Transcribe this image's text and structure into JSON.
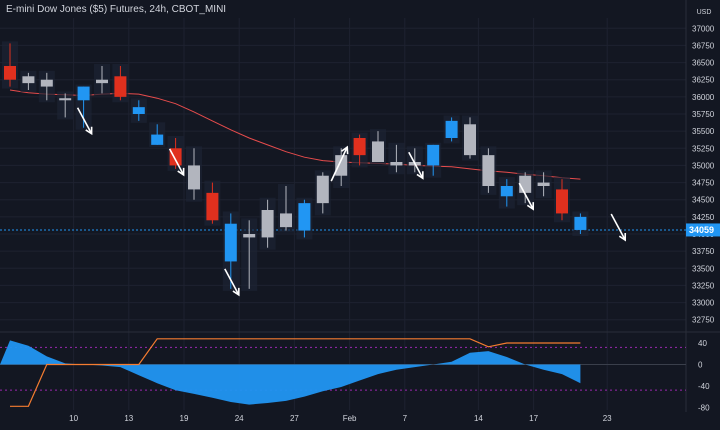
{
  "header": {
    "title": "E-mini Dow Jones ($5) Futures, 24h, CBOT_MINI",
    "currency": "USD"
  },
  "price_tag": "34059",
  "colors": {
    "background": "#131722",
    "up_candle": "#2196f3",
    "down_candle": "#e0301e",
    "neutral_candle": "#b2b5be",
    "moving_average": "#e74c4c",
    "price_line": "#2196f3",
    "arrow": "#ffffff",
    "oscillator_positive": "#2196f3",
    "oscillator_negative": "#2196f3",
    "oscillator_signal": "#f57c30",
    "grid": "#1e2230",
    "axis_text": "#d1d4dc"
  },
  "chart_data": [
    {
      "type": "candlestick",
      "title": "",
      "y_axis_ticks": [
        37000,
        36750,
        36500,
        36250,
        36000,
        35750,
        35500,
        35250,
        35000,
        34750,
        34500,
        34250,
        34000,
        33750,
        33500,
        33250,
        33000,
        32750
      ],
      "x_axis_ticks": [
        "10",
        "13",
        "19",
        "24",
        "27",
        "Feb",
        "7",
        "14",
        "17",
        "23"
      ],
      "ylim": [
        32600,
        37150
      ],
      "last_price": 34059,
      "candles": [
        {
          "date": "Jan 4",
          "open": 36450,
          "high": 36780,
          "low": 36150,
          "close": 36250,
          "color": "down"
        },
        {
          "date": "Jan 5",
          "open": 36200,
          "high": 36350,
          "low": 36100,
          "close": 36300,
          "color": "neutral"
        },
        {
          "date": "Jan 6",
          "open": 36250,
          "high": 36350,
          "low": 35950,
          "close": 36150,
          "color": "neutral"
        },
        {
          "date": "Jan 7",
          "open": 35950,
          "high": 36050,
          "low": 35700,
          "close": 35980,
          "color": "neutral"
        },
        {
          "date": "Jan 10",
          "open": 35950,
          "high": 36150,
          "low": 35550,
          "close": 36150,
          "color": "up"
        },
        {
          "date": "Jan 11",
          "open": 36200,
          "high": 36450,
          "low": 36050,
          "close": 36250,
          "color": "neutral"
        },
        {
          "date": "Jan 12",
          "open": 36300,
          "high": 36450,
          "low": 35950,
          "close": 36000,
          "color": "down"
        },
        {
          "date": "Jan 13",
          "open": 35850,
          "high": 35950,
          "low": 35650,
          "close": 35750,
          "color": "up"
        },
        {
          "date": "Jan 14",
          "open": 35450,
          "high": 35600,
          "low": 35300,
          "close": 35300,
          "color": "up"
        },
        {
          "date": "Jan 18",
          "open": 35250,
          "high": 35400,
          "low": 34950,
          "close": 35000,
          "color": "down"
        },
        {
          "date": "Jan 19",
          "open": 35000,
          "high": 35250,
          "low": 34500,
          "close": 34650,
          "color": "neutral"
        },
        {
          "date": "Jan 20",
          "open": 34600,
          "high": 34750,
          "low": 34150,
          "close": 34200,
          "color": "down"
        },
        {
          "date": "Jan 21",
          "open": 34150,
          "high": 34300,
          "low": 33200,
          "close": 33600,
          "color": "up"
        },
        {
          "date": "Jan 24",
          "open": 33950,
          "high": 34200,
          "low": 33200,
          "close": 34000,
          "color": "neutral"
        },
        {
          "date": "Jan 25",
          "open": 33950,
          "high": 34500,
          "low": 33800,
          "close": 34350,
          "color": "neutral"
        },
        {
          "date": "Jan 26",
          "open": 34300,
          "high": 34700,
          "low": 34050,
          "close": 34100,
          "color": "neutral"
        },
        {
          "date": "Jan 27",
          "open": 34050,
          "high": 34500,
          "low": 33950,
          "close": 34450,
          "color": "up"
        },
        {
          "date": "Jan 28",
          "open": 34450,
          "high": 34900,
          "low": 34300,
          "close": 34850,
          "color": "neutral"
        },
        {
          "date": "Jan 31",
          "open": 34850,
          "high": 35250,
          "low": 34700,
          "close": 35150,
          "color": "neutral"
        },
        {
          "date": "Feb 1",
          "open": 35150,
          "high": 35450,
          "low": 35000,
          "close": 35400,
          "color": "down"
        },
        {
          "date": "Feb 2",
          "open": 35350,
          "high": 35500,
          "low": 35050,
          "close": 35050,
          "color": "neutral"
        },
        {
          "date": "Feb 3",
          "open": 35000,
          "high": 35300,
          "low": 34900,
          "close": 35050,
          "color": "neutral"
        },
        {
          "date": "Feb 4",
          "open": 35050,
          "high": 35250,
          "low": 34900,
          "close": 35000,
          "color": "neutral"
        },
        {
          "date": "Feb 7",
          "open": 35000,
          "high": 35300,
          "low": 34850,
          "close": 35300,
          "color": "up"
        },
        {
          "date": "Feb 8",
          "open": 35400,
          "high": 35700,
          "low": 35350,
          "close": 35650,
          "color": "up"
        },
        {
          "date": "Feb 9",
          "open": 35600,
          "high": 35700,
          "low": 35100,
          "close": 35150,
          "color": "neutral"
        },
        {
          "date": "Feb 10",
          "open": 35150,
          "high": 35250,
          "low": 34600,
          "close": 34700,
          "color": "neutral"
        },
        {
          "date": "Feb 11",
          "open": 34700,
          "high": 34800,
          "low": 34400,
          "close": 34550,
          "color": "up"
        },
        {
          "date": "Feb 14",
          "open": 34600,
          "high": 34900,
          "low": 34450,
          "close": 34850,
          "color": "neutral"
        },
        {
          "date": "Feb 15",
          "open": 34750,
          "high": 34900,
          "low": 34550,
          "close": 34700,
          "color": "neutral"
        },
        {
          "date": "Feb 16",
          "open": 34650,
          "high": 34800,
          "low": 34200,
          "close": 34300,
          "color": "down"
        },
        {
          "date": "Feb 17",
          "open": 34250,
          "high": 34300,
          "low": 34000,
          "close": 34059,
          "color": "up"
        }
      ],
      "moving_average": [
        36100,
        36060,
        36040,
        36030,
        36020,
        36040,
        36050,
        36040,
        35980,
        35900,
        35780,
        35650,
        35520,
        35400,
        35300,
        35200,
        35120,
        35070,
        35050,
        35040,
        35030,
        35020,
        35000,
        34990,
        34980,
        34950,
        34920,
        34900,
        34870,
        34850,
        34820,
        34800
      ],
      "signal_arrows": [
        {
          "date": "Jan 10",
          "direction": "down"
        },
        {
          "date": "Jan 18",
          "direction": "down"
        },
        {
          "date": "Jan 21",
          "direction": "down"
        },
        {
          "date": "Jan 31",
          "direction": "up"
        },
        {
          "date": "Feb 4",
          "direction": "down"
        },
        {
          "date": "Feb 14",
          "direction": "down"
        },
        {
          "date": "Feb 22",
          "direction": "down"
        }
      ]
    },
    {
      "type": "area",
      "title": "",
      "y_axis_ticks": [
        40,
        0,
        -40,
        -80
      ],
      "ylim": [
        -85,
        55
      ],
      "upper_level": 32,
      "lower_level": -48,
      "oscillator": [
        45,
        35,
        15,
        2,
        0,
        -2,
        -5,
        -20,
        -35,
        -48,
        -55,
        -62,
        -70,
        -75,
        -72,
        -68,
        -60,
        -50,
        -42,
        -30,
        -18,
        -10,
        -5,
        0,
        5,
        22,
        25,
        14,
        0,
        -10,
        -18,
        -35
      ],
      "signal_line": [
        -78,
        -78,
        0,
        0,
        0,
        0,
        0,
        0,
        48,
        48,
        48,
        48,
        48,
        48,
        48,
        48,
        48,
        48,
        48,
        48,
        48,
        48,
        48,
        48,
        48,
        48,
        33,
        40,
        40,
        40,
        40,
        40
      ]
    }
  ]
}
